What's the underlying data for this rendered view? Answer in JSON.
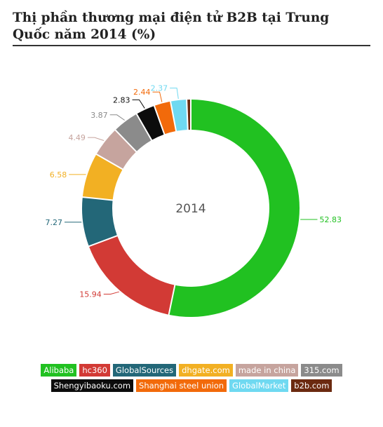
{
  "chart_data": {
    "type": "pie",
    "title": "Thị phần thương mại điện tử B2B tại Trung Quốc năm 2014 (%)",
    "center_label": "2014",
    "hole": "donut",
    "legend_position": "bottom",
    "series": [
      {
        "name": "Alibaba",
        "value": 52.83,
        "label": "52.83",
        "color": "#21c121"
      },
      {
        "name": "hc360",
        "value": 15.94,
        "label": "15.94",
        "color": "#d23a35"
      },
      {
        "name": "GlobalSources",
        "value": 7.27,
        "label": "7.27",
        "color": "#236778"
      },
      {
        "name": "dhgate.com",
        "value": 6.58,
        "label": "6.58",
        "color": "#f2b023"
      },
      {
        "name": "made in china",
        "value": 4.49,
        "label": "4.49",
        "color": "#c6a49e"
      },
      {
        "name": "315.com",
        "value": 3.87,
        "label": "3.87",
        "color": "#8b8b8b"
      },
      {
        "name": "Shengyibaoku.com",
        "value": 2.83,
        "label": "2.83",
        "color": "#0c0c0c"
      },
      {
        "name": "Shanghai steel union",
        "value": 2.44,
        "label": "2.44",
        "color": "#f26a0a"
      },
      {
        "name": "GlobalMarket",
        "value": 2.37,
        "label": "2.37",
        "color": "#6fd9f1"
      },
      {
        "name": "b2b.com",
        "value": 0.6,
        "label": "",
        "color": "#6b2a10"
      }
    ]
  }
}
